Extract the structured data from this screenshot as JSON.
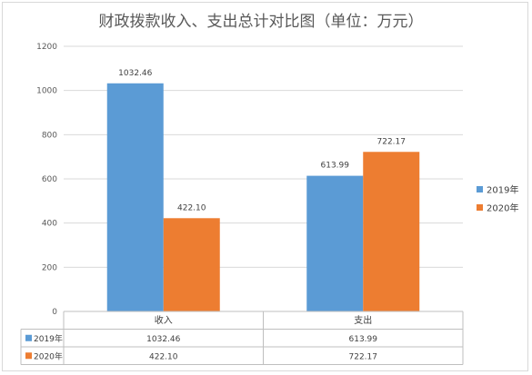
{
  "chart_data": {
    "type": "bar",
    "title": "财政拨款收入、支出总计对比图（单位：万元）",
    "categories": [
      "收入",
      "支出"
    ],
    "series": [
      {
        "name": "2019年",
        "values": [
          1032.46,
          613.99
        ],
        "labels": [
          "1032.46",
          "613.99"
        ],
        "color": "#5b9bd5"
      },
      {
        "name": "2020年",
        "values": [
          422.1,
          722.17
        ],
        "labels": [
          "422.10",
          "722.17"
        ],
        "color": "#ed7d31"
      }
    ],
    "ylim": [
      0,
      1200
    ],
    "yticks": [
      "0",
      "200",
      "400",
      "600",
      "800",
      "1000",
      "1200"
    ],
    "grid": true,
    "legend_position": "right",
    "data_table": true
  }
}
